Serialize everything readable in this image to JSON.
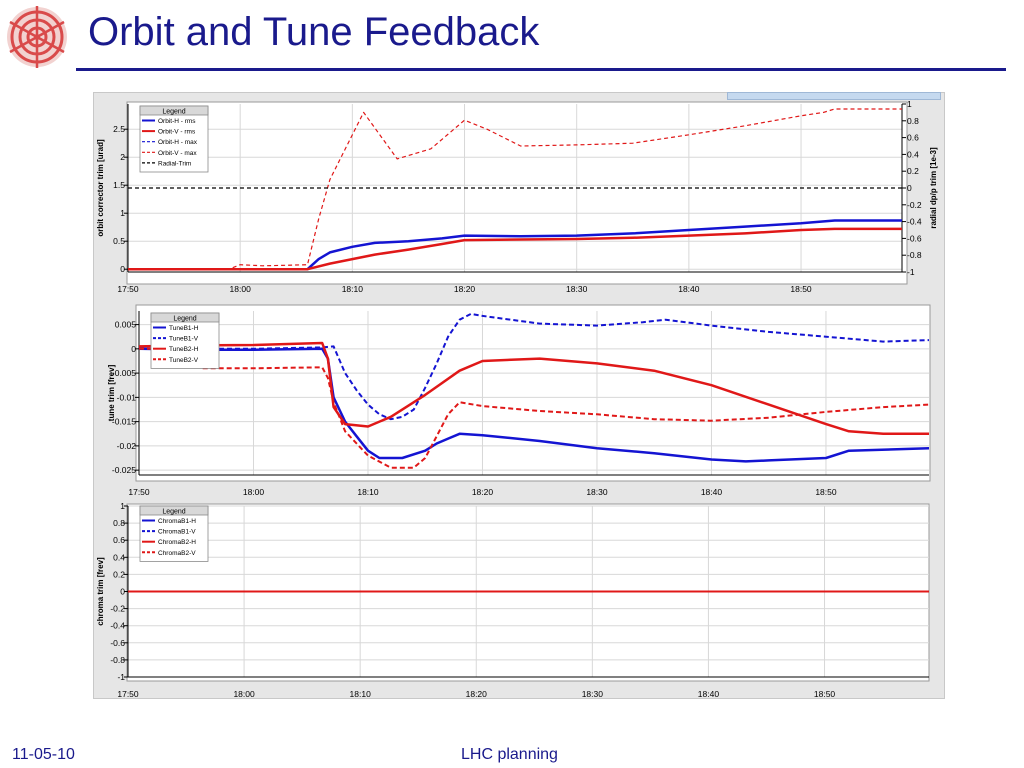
{
  "slide": {
    "title": "Orbit and Tune Feedback",
    "date": "11-05-10",
    "footer": "LHC planning"
  },
  "colors": {
    "title": "#1a1a8c",
    "blue": "#1414d2",
    "red": "#e01818",
    "black": "#000000",
    "background": "#ffffff",
    "panel": "#e6e6e6"
  },
  "chart_data": [
    {
      "type": "line",
      "legend_title": "Legend",
      "legend_position": "top-left",
      "ylabel": "orbit corrector trim [urad]",
      "y2label": "radial dp/p trim [1e-3]",
      "ylim": [
        -0.05,
        2.95
      ],
      "y2lim": [
        -1,
        1
      ],
      "yticks": [
        "0",
        "0.5",
        "1",
        "1.5",
        "2",
        "2.5"
      ],
      "y2ticks": [
        "-1",
        "-0.8",
        "-0.6",
        "-0.4",
        "-0.2",
        "0",
        "0.2",
        "0.4",
        "0.6",
        "0.8",
        "1"
      ],
      "xlim": [
        "17:50",
        "18:59"
      ],
      "xticks": [
        "17:50",
        "18:00",
        "18:10",
        "18:20",
        "18:30",
        "18:40",
        "18:50"
      ],
      "grid": true,
      "series": [
        {
          "name": "Orbit-H - rms",
          "color": "#1414d2",
          "dash": "solid",
          "width": 2.5,
          "axis": "left",
          "x": [
            "17:50",
            "18:06",
            "18:07",
            "18:08",
            "18:10",
            "18:12",
            "18:15",
            "18:18",
            "18:20",
            "18:25",
            "18:30",
            "18:35",
            "18:40",
            "18:45",
            "18:50",
            "18:53",
            "18:59"
          ],
          "y": [
            0,
            0,
            0.18,
            0.3,
            0.4,
            0.47,
            0.5,
            0.55,
            0.6,
            0.59,
            0.6,
            0.64,
            0.7,
            0.76,
            0.82,
            0.87,
            0.87
          ]
        },
        {
          "name": "Orbit-V - rms",
          "color": "#e01818",
          "dash": "solid",
          "width": 2.5,
          "axis": "left",
          "x": [
            "17:50",
            "18:06",
            "18:08",
            "18:10",
            "18:12",
            "18:15",
            "18:18",
            "18:20",
            "18:25",
            "18:30",
            "18:35",
            "18:40",
            "18:45",
            "18:50",
            "18:53",
            "18:59"
          ],
          "y": [
            0,
            0,
            0.1,
            0.18,
            0.26,
            0.35,
            0.45,
            0.52,
            0.53,
            0.54,
            0.56,
            0.6,
            0.64,
            0.7,
            0.72,
            0.72
          ]
        },
        {
          "name": "Orbit-H - max",
          "color": "#1414d2",
          "dash": "dashed",
          "width": 1.2,
          "axis": "left",
          "x": [],
          "y": []
        },
        {
          "name": "Orbit-V - max",
          "color": "#e01818",
          "dash": "dashed",
          "width": 1.2,
          "axis": "left",
          "x": [
            "17:50",
            "17:59",
            "18:00",
            "18:02",
            "18:04",
            "18:06",
            "18:07",
            "18:08",
            "18:09",
            "18:11",
            "18:14",
            "18:17",
            "18:20",
            "18:22",
            "18:25",
            "18:30",
            "18:35",
            "18:40",
            "18:45",
            "18:50",
            "18:52",
            "18:53",
            "18:59"
          ],
          "y": [
            0,
            0,
            0.08,
            0.06,
            0.07,
            0.08,
            0.9,
            1.6,
            2.0,
            2.8,
            1.97,
            2.15,
            2.66,
            2.5,
            2.2,
            2.22,
            2.25,
            2.4,
            2.56,
            2.74,
            2.8,
            2.86,
            2.86
          ]
        },
        {
          "name": "Radial-Trim",
          "color": "#000000",
          "dash": "dashed",
          "width": 1.2,
          "axis": "right",
          "x": [
            "17:50",
            "18:59"
          ],
          "y": [
            0,
            0
          ]
        }
      ]
    },
    {
      "type": "line",
      "legend_title": "Legend",
      "legend_position": "top-left",
      "ylabel": "tune trim [frev]",
      "ylim": [
        -0.026,
        0.0078
      ],
      "yticks": [
        "0.005",
        "0",
        "-0.005",
        "-0.01",
        "-0.015",
        "-0.02",
        "-0.025"
      ],
      "xlim": [
        "17:50",
        "18:59"
      ],
      "xticks": [
        "17:50",
        "18:00",
        "18:10",
        "18:20",
        "18:30",
        "18:40",
        "18:50"
      ],
      "grid": true,
      "series": [
        {
          "name": "TuneB1-H",
          "color": "#1414d2",
          "dash": "solid",
          "width": 2.5,
          "x": [
            "17:50",
            "17:55",
            "18:00",
            "18:06",
            "18:06.5",
            "18:07",
            "18:08",
            "18:09",
            "18:10",
            "18:11",
            "18:13",
            "18:15",
            "18:16",
            "18:17",
            "18:18",
            "18:20",
            "18:25",
            "18:30",
            "18:35",
            "18:40",
            "18:43",
            "18:45",
            "18:50",
            "18:52",
            "18:59"
          ],
          "y": [
            0,
            -0.0002,
            -0.0002,
            0,
            -0.002,
            -0.01,
            -0.015,
            -0.018,
            -0.021,
            -0.0225,
            -0.0225,
            -0.021,
            -0.0195,
            -0.0185,
            -0.0175,
            -0.0178,
            -0.019,
            -0.0205,
            -0.0215,
            -0.0228,
            -0.0232,
            -0.023,
            -0.0225,
            -0.021,
            -0.0205
          ]
        },
        {
          "name": "TuneB1-V",
          "color": "#1414d2",
          "dash": "dashed",
          "width": 2,
          "x": [
            "17:50",
            "17:55",
            "18:00",
            "18:06",
            "18:07",
            "18:08",
            "18:09",
            "18:10",
            "18:11",
            "18:12",
            "18:13",
            "18:14",
            "18:15",
            "18:16",
            "18:17",
            "18:18",
            "18:19",
            "18:20",
            "18:25",
            "18:30",
            "18:34",
            "18:36",
            "18:40",
            "18:45",
            "18:50",
            "18:55",
            "18:59"
          ],
          "y": [
            0,
            0,
            0,
            0.0003,
            0.0005,
            -0.005,
            -0.0085,
            -0.0115,
            -0.0135,
            -0.0145,
            -0.014,
            -0.0125,
            -0.008,
            -0.003,
            0.0025,
            0.006,
            0.0072,
            0.0068,
            0.0052,
            0.0048,
            0.0055,
            0.006,
            0.0048,
            0.0035,
            0.0025,
            0.0015,
            0.0018
          ]
        },
        {
          "name": "TuneB2-H",
          "color": "#e01818",
          "dash": "solid",
          "width": 2.5,
          "x": [
            "17:50",
            "17:55",
            "18:00",
            "18:06",
            "18:06.5",
            "18:07",
            "18:08",
            "18:10",
            "18:12",
            "18:15",
            "18:18",
            "18:20",
            "18:25",
            "18:30",
            "18:35",
            "18:40",
            "18:45",
            "18:50",
            "18:52",
            "18:55",
            "18:59"
          ],
          "y": [
            0.0005,
            0.0007,
            0.0008,
            0.0012,
            -0.002,
            -0.012,
            -0.0155,
            -0.016,
            -0.014,
            -0.0095,
            -0.0045,
            -0.0025,
            -0.002,
            -0.003,
            -0.0045,
            -0.0075,
            -0.0115,
            -0.0155,
            -0.017,
            -0.0175,
            -0.0175
          ]
        },
        {
          "name": "TuneB2-V",
          "color": "#e01818",
          "dash": "dashed",
          "width": 2,
          "x": [
            "17:50",
            "17:55",
            "17:55.3",
            "18:00",
            "18:06",
            "18:06.5",
            "18:07",
            "18:08",
            "18:10",
            "18:12",
            "18:14",
            "18:15",
            "18:16",
            "18:17",
            "18:18",
            "18:20",
            "18:25",
            "18:30",
            "18:35",
            "18:40",
            "18:45",
            "18:50",
            "18:55",
            "18:59"
          ],
          "y": [
            0,
            0,
            -0.004,
            -0.004,
            -0.0038,
            -0.006,
            -0.011,
            -0.017,
            -0.022,
            -0.0245,
            -0.0245,
            -0.0225,
            -0.018,
            -0.0135,
            -0.011,
            -0.0118,
            -0.0128,
            -0.0135,
            -0.0145,
            -0.0148,
            -0.0142,
            -0.013,
            -0.012,
            -0.0115
          ]
        }
      ]
    },
    {
      "type": "line",
      "legend_title": "Legend",
      "legend_position": "top-left",
      "ylabel": "chroma trim [frev]",
      "ylim": [
        -1,
        1
      ],
      "yticks": [
        "1",
        "0.8",
        "0.6",
        "0.4",
        "0.2",
        "0",
        "-0.2",
        "-0.4",
        "-0.6",
        "-0.8",
        "-1"
      ],
      "xlim": [
        "17:50",
        "18:59"
      ],
      "xticks": [
        "17:50",
        "18:00",
        "18:10",
        "18:20",
        "18:30",
        "18:40",
        "18:50"
      ],
      "grid": true,
      "series": [
        {
          "name": "ChromaB1-H",
          "color": "#1414d2",
          "dash": "solid",
          "width": 2,
          "x": [
            "17:50",
            "18:59"
          ],
          "y": [
            0,
            0
          ]
        },
        {
          "name": "ChromaB1-V",
          "color": "#1414d2",
          "dash": "dashed",
          "width": 2,
          "x": [
            "17:50",
            "18:59"
          ],
          "y": [
            0,
            0
          ]
        },
        {
          "name": "ChromaB2-H",
          "color": "#e01818",
          "dash": "solid",
          "width": 2,
          "x": [
            "17:50",
            "18:59"
          ],
          "y": [
            0,
            0
          ]
        },
        {
          "name": "ChromaB2-V",
          "color": "#e01818",
          "dash": "dashed",
          "width": 2,
          "x": [
            "17:50",
            "18:59"
          ],
          "y": [
            0,
            0
          ]
        }
      ]
    }
  ]
}
